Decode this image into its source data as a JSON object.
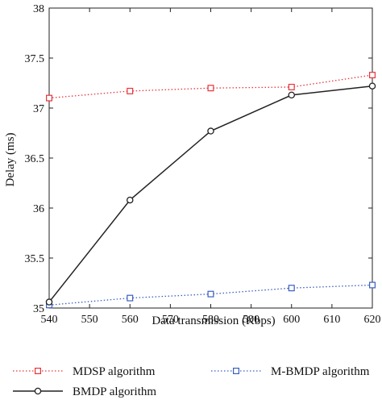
{
  "chart_data": {
    "type": "line",
    "title": "",
    "xlabel": "Data transmission (Kbps)",
    "ylabel": "Delay (ms)",
    "xlim": [
      540,
      620
    ],
    "ylim": [
      35,
      38
    ],
    "x_ticks": [
      "540",
      "550",
      "560",
      "570",
      "580",
      "590",
      "600",
      "610",
      "620"
    ],
    "y_ticks": [
      "35",
      "35.5",
      "36",
      "36.5",
      "37",
      "37.5",
      "38"
    ],
    "grid": false,
    "legend_position": "bottom",
    "series": [
      {
        "name": "MDSP algorithm",
        "color": "#e8343b",
        "line_style": "dotted",
        "marker": "square",
        "x": [
          540,
          560,
          580,
          600,
          620
        ],
        "y": [
          37.1,
          37.17,
          37.2,
          37.21,
          37.33
        ]
      },
      {
        "name": "M-BMDP algorithm",
        "color": "#3a5fbf",
        "line_style": "dotted",
        "marker": "square",
        "x": [
          540,
          560,
          580,
          600,
          620
        ],
        "y": [
          35.03,
          35.1,
          35.14,
          35.2,
          35.23
        ]
      },
      {
        "name": "BMDP algorithm",
        "color": "#222222",
        "line_style": "solid",
        "marker": "circle",
        "x": [
          540,
          560,
          580,
          600,
          620
        ],
        "y": [
          35.06,
          36.08,
          36.77,
          37.13,
          37.22
        ]
      }
    ]
  }
}
